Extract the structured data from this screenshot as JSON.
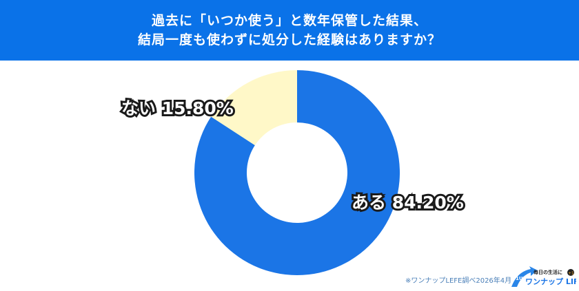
{
  "chart_data": {
    "type": "pie",
    "style": "donut",
    "title": "過去に「いつか使う」と数年保管した結果、\n結局一度も使わずに処分した経験はありますか？",
    "slices": [
      {
        "label": "ある",
        "value": 84.2,
        "display": "84.20%",
        "color": "#1b75e6"
      },
      {
        "label": "ない",
        "value": 15.8,
        "display": "15.80%",
        "color": "#fff8c8"
      }
    ]
  },
  "header": {
    "line1": "過去に「いつか使う」と数年保管した結果、",
    "line2": "結局一度も使わずに処分した経験はありますか？",
    "color": "#0a72e8"
  },
  "labels": {
    "yes": "ある 84.20%",
    "no": "ない 15.80%"
  },
  "footer": {
    "source": "※ワンナップLEFE調べ2026年4月"
  },
  "logo": {
    "text": "ワンナップLIFE",
    "badge": "1UP",
    "tagline": "毎日の生活に",
    "plus": "+1"
  }
}
